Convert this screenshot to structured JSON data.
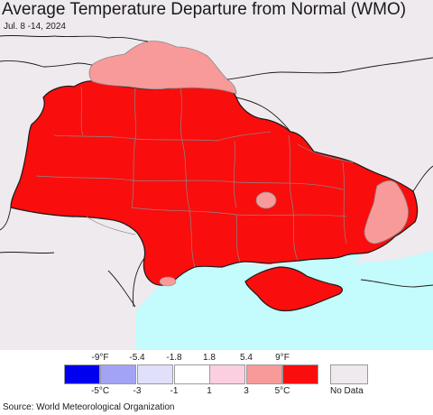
{
  "title": "Average Temperature Departure from Normal (WMO)",
  "date_range": "Jul. 8 -14, 2024",
  "source": "Source: World Meteorological Organization",
  "colors": {
    "no_data": "#efeaee",
    "sea": "#c4fbfc",
    "border": "#8a8a8a",
    "country_border": "#1a1a1a"
  },
  "legend": {
    "f_ticks": [
      "-9°F",
      "-5.4",
      "-1.8",
      "1.8",
      "5.4",
      "9°F"
    ],
    "c_ticks": [
      "-5°C",
      "-3",
      "-1",
      "1",
      "3",
      "5°C"
    ],
    "swatches": [
      "#0000ee",
      "#a3a3f5",
      "#e0e0fa",
      "#ffffff",
      "#fbcfe0",
      "#f89a9a",
      "#fa0d0d"
    ],
    "no_data_label": "No Data"
  }
}
